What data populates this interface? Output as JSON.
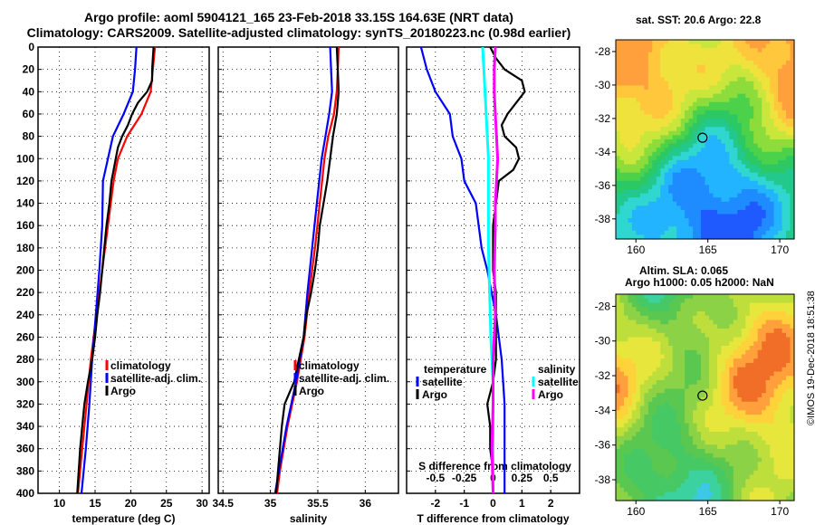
{
  "header": {
    "title_line1": "Argo profile: aoml 5904121_165 23-Feb-2018 33.15S 164.63E (NRT data)",
    "title_line2": "Climatology: CARS2009. Satellite-adjusted climatology: synTS_20180223.nc (0.98d earlier)"
  },
  "colors": {
    "climatology": "#ff0000",
    "satellite": "#0000ff",
    "argo": "#000000",
    "sat_salinity": "#00ffff",
    "argo_salinity": "#ff00ff"
  },
  "chart_data": [
    {
      "type": "line",
      "id": "temperature",
      "xlabel": "temperature (deg C)",
      "ylabel": "",
      "xlim": [
        7,
        31
      ],
      "ylim": [
        400,
        0
      ],
      "xticks": [
        10,
        15,
        20,
        25,
        30
      ],
      "yticks": [
        0,
        20,
        40,
        60,
        80,
        100,
        120,
        140,
        160,
        180,
        200,
        220,
        240,
        260,
        280,
        300,
        320,
        340,
        360,
        380,
        400
      ],
      "legend": [
        "climatology",
        "satellite-adj. clim.",
        "Argo"
      ],
      "series": [
        {
          "name": "climatology",
          "color": "#ff0000",
          "depth": [
            0,
            20,
            40,
            60,
            80,
            100,
            120,
            160,
            200,
            240,
            280,
            320,
            360,
            400
          ],
          "values": [
            23.4,
            23.1,
            22.8,
            21.5,
            19.5,
            18.2,
            17.6,
            16.8,
            16.0,
            15.2,
            14.4,
            13.8,
            13.2,
            12.6
          ]
        },
        {
          "name": "satellite-adj. clim.",
          "color": "#0000ff",
          "depth": [
            0,
            20,
            40,
            60,
            80,
            100,
            120,
            160,
            200,
            240,
            280,
            320,
            360,
            400
          ],
          "values": [
            20.8,
            20.6,
            20.3,
            19.0,
            17.5,
            16.8,
            16.1,
            16.0,
            15.6,
            15.1,
            14.6,
            14.2,
            13.7,
            13.1
          ]
        },
        {
          "name": "Argo",
          "color": "#000000",
          "depth": [
            0,
            10,
            20,
            30,
            40,
            50,
            60,
            70,
            80,
            90,
            100,
            110,
            120,
            140,
            160,
            180,
            200,
            220,
            240,
            260,
            280,
            300,
            320,
            340,
            360,
            380,
            400
          ],
          "values": [
            23.2,
            23.1,
            23.0,
            23.0,
            22.3,
            21.0,
            20.2,
            19.6,
            18.8,
            18.2,
            17.9,
            17.6,
            17.3,
            17.0,
            16.6,
            16.3,
            16.0,
            15.7,
            15.3,
            15.0,
            14.6,
            14.0,
            13.5,
            13.2,
            12.9,
            12.7,
            12.5
          ]
        }
      ]
    },
    {
      "type": "line",
      "id": "salinity",
      "xlabel": "salinity",
      "xlim": [
        34.45,
        36.35
      ],
      "ylim": [
        400,
        0
      ],
      "xticks": [
        34.5,
        35,
        35.5,
        36
      ],
      "legend": [
        "climatology",
        "satellite-adj. clim.",
        "Argo"
      ],
      "series": [
        {
          "name": "climatology",
          "color": "#ff0000",
          "depth": [
            0,
            20,
            40,
            60,
            80,
            100,
            140,
            180,
            220,
            260,
            300,
            340,
            380,
            400
          ],
          "values": [
            35.72,
            35.71,
            35.7,
            35.67,
            35.61,
            35.57,
            35.52,
            35.47,
            35.41,
            35.36,
            35.28,
            35.18,
            35.1,
            35.07
          ]
        },
        {
          "name": "satellite-adj. clim.",
          "color": "#0000ff",
          "depth": [
            0,
            20,
            40,
            60,
            80,
            100,
            140,
            180,
            220,
            260,
            300,
            340,
            380,
            400
          ],
          "values": [
            35.63,
            35.64,
            35.65,
            35.62,
            35.58,
            35.54,
            35.49,
            35.44,
            35.39,
            35.35,
            35.27,
            35.17,
            35.09,
            35.05
          ]
        },
        {
          "name": "Argo",
          "color": "#000000",
          "depth": [
            0,
            20,
            40,
            60,
            80,
            100,
            120,
            140,
            160,
            180,
            200,
            220,
            240,
            260,
            280,
            300,
            320,
            340,
            360,
            380,
            400
          ],
          "values": [
            35.7,
            35.71,
            35.72,
            35.7,
            35.66,
            35.63,
            35.6,
            35.56,
            35.52,
            35.5,
            35.47,
            35.43,
            35.38,
            35.35,
            35.3,
            35.25,
            35.15,
            35.12,
            35.1,
            35.08,
            35.06
          ]
        }
      ]
    },
    {
      "type": "line",
      "id": "difference",
      "xlabel": "T difference from climatology",
      "x2label": "S difference from climatology",
      "xlim": [
        -3,
        3
      ],
      "x2lim": [
        -0.75,
        0.75
      ],
      "ylim": [
        400,
        0
      ],
      "xticks": [
        -2,
        -1,
        0,
        1,
        2
      ],
      "x2ticks": [
        -0.5,
        -0.25,
        0,
        0.25,
        0.5
      ],
      "legend_left_title": "temperature",
      "legend_right_title": "salinity",
      "legend_left": [
        "satellite",
        "Argo"
      ],
      "legend_right": [
        "satellite",
        "Argo"
      ],
      "series": [
        {
          "name": "T satellite",
          "axis": "T",
          "color": "#0000ff",
          "depth": [
            0,
            20,
            40,
            60,
            80,
            100,
            120,
            140,
            160,
            180,
            200,
            240,
            280,
            320,
            360,
            400
          ],
          "values": [
            -2.5,
            -2.3,
            -2.0,
            -1.5,
            -1.4,
            -1.1,
            -1.0,
            -0.6,
            -0.5,
            -0.4,
            -0.2,
            0.1,
            0.3,
            0.4,
            0.4,
            0.4
          ]
        },
        {
          "name": "T Argo",
          "axis": "T",
          "color": "#000000",
          "depth": [
            0,
            10,
            20,
            30,
            40,
            50,
            60,
            70,
            80,
            90,
            100,
            110,
            120,
            140,
            160,
            180,
            200,
            220,
            240,
            260,
            280,
            300,
            320,
            340,
            360,
            380,
            400
          ],
          "values": [
            -0.1,
            0.1,
            0.4,
            1.0,
            1.1,
            0.8,
            0.5,
            0.3,
            0.4,
            0.8,
            0.9,
            0.7,
            0.2,
            0.1,
            0.0,
            0.0,
            0.0,
            0.1,
            0.1,
            0.1,
            0.1,
            0.0,
            -0.2,
            -0.1,
            -0.1,
            0.0,
            0.0
          ]
        },
        {
          "name": "S satellite",
          "axis": "S",
          "color": "#00ffff",
          "depth": [
            0,
            20,
            40,
            60,
            80,
            100,
            140,
            180,
            220,
            260,
            300,
            340,
            380,
            400
          ],
          "values": [
            -0.09,
            -0.08,
            -0.07,
            -0.06,
            -0.05,
            -0.04,
            -0.04,
            -0.04,
            -0.03,
            -0.02,
            0.0,
            0.0,
            0.0,
            0.0
          ]
        },
        {
          "name": "S Argo",
          "axis": "S",
          "color": "#ff00ff",
          "depth": [
            0,
            20,
            40,
            60,
            80,
            100,
            120,
            140,
            160,
            200,
            240,
            280,
            320,
            360,
            400
          ],
          "values": [
            0.02,
            0.01,
            0.01,
            0.02,
            0.03,
            0.04,
            0.03,
            0.02,
            0.02,
            0.01,
            0.02,
            0.0,
            0.0,
            -0.01,
            0.0
          ]
        }
      ]
    }
  ],
  "maps": {
    "sst": {
      "title": "sat. SST: 20.6 Argo: 22.8",
      "lat_ticks": [
        "-28",
        "-30",
        "-32",
        "-34",
        "-36",
        "-38"
      ],
      "lon_ticks": [
        "160",
        "165",
        "170"
      ]
    },
    "sla": {
      "title_line1": "Altim. SLA: 0.065",
      "title_line2": "Argo h1000: 0.05 h2000: NaN",
      "lat_ticks": [
        "-28",
        "-30",
        "-32",
        "-34",
        "-36",
        "-38"
      ],
      "lon_ticks": [
        "160",
        "165",
        "170"
      ]
    }
  },
  "footer": {
    "credit": "©IMOS 19-Dec-2018 18:51:38"
  }
}
